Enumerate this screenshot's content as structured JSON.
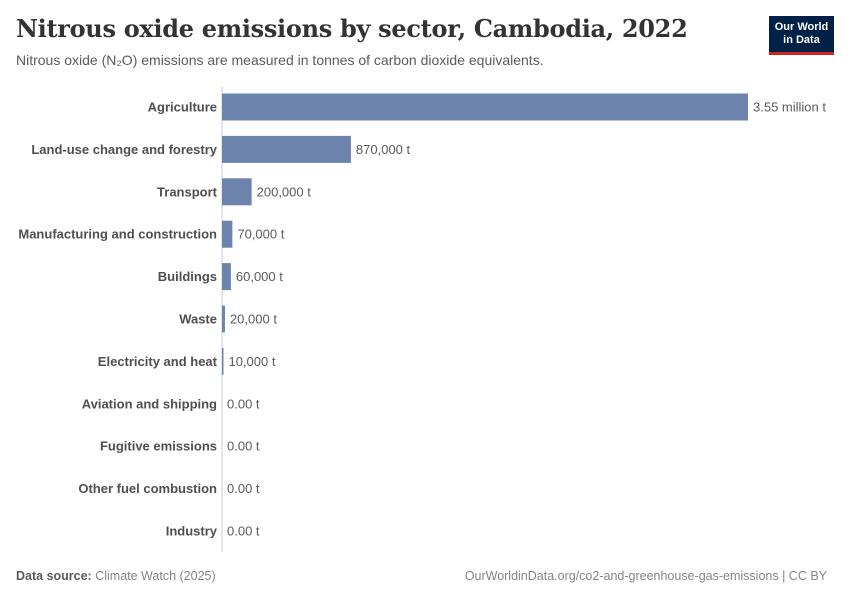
{
  "header": {
    "title": "Nitrous oxide emissions by sector, Cambodia, 2022",
    "subtitle": "Nitrous oxide (N₂O) emissions are measured in tonnes of carbon dioxide equivalents."
  },
  "logo": {
    "line1": "Our World",
    "line2": "in Data"
  },
  "footer": {
    "source_label": "Data source:",
    "source_value": "Climate Watch (2025)",
    "link": "OurWorldinData.org/co2-and-greenhouse-gas-emissions | CC BY"
  },
  "colors": {
    "bar": "#6b83ad",
    "axis": "#c8c8c8",
    "label": "#4f4f4f",
    "value": "#5b5b5b"
  },
  "chart_data": {
    "type": "bar",
    "orientation": "horizontal",
    "title": "Nitrous oxide emissions by sector, Cambodia, 2022",
    "categories": [
      "Agriculture",
      "Land-use change and forestry",
      "Transport",
      "Manufacturing and construction",
      "Buildings",
      "Waste",
      "Electricity and heat",
      "Aviation and shipping",
      "Fugitive emissions",
      "Other fuel combustion",
      "Industry"
    ],
    "values": [
      3550000,
      870000,
      200000,
      70000,
      60000,
      20000,
      10000,
      0,
      0,
      0,
      0
    ],
    "value_labels": [
      "3.55 million t",
      "870,000 t",
      "200,000 t",
      "70,000 t",
      "60,000 t",
      "20,000 t",
      "10,000 t",
      "0.00 t",
      "0.00 t",
      "0.00 t",
      "0.00 t"
    ],
    "unit": "t",
    "xlim": [
      0,
      3550000
    ],
    "grid": false,
    "legend": "none"
  }
}
